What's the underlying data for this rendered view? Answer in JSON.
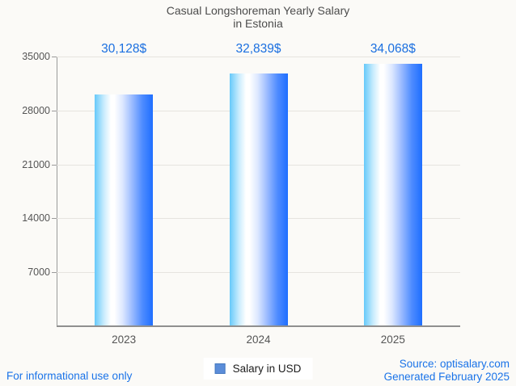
{
  "title": {
    "line1": "Casual Longshoreman Yearly Salary",
    "line2": "in Estonia"
  },
  "legend": {
    "label": "Salary in USD",
    "swatch_color": "#5b8dd9"
  },
  "footer": {
    "left": "For informational use only",
    "source": "Source: optisalary.com",
    "generated": "Generated February 2025"
  },
  "colors": {
    "background": "#fbfaf7",
    "title_gray": "#4c4c4c",
    "axis_gray": "#8f8f8f",
    "grid_gray": "#e6e4df",
    "tick_label_gray": "#555555",
    "value_label_blue": "#1a6fe0",
    "footer_blue": "#1a73e8",
    "bar_gradient_left": "#66c9fa",
    "bar_gradient_middle": "#ffffff",
    "bar_gradient_right": "#1e6eff"
  },
  "chart_data": {
    "type": "bar",
    "title": "Casual Longshoreman Yearly Salary in Estonia",
    "categories": [
      "2023",
      "2024",
      "2025"
    ],
    "values": [
      30128,
      32839,
      34068
    ],
    "value_labels": [
      "30,128$",
      "32,839$",
      "34,068$"
    ],
    "series_name": "Salary in USD",
    "xlabel": "",
    "ylabel": "",
    "ylim": [
      0,
      35000
    ],
    "yticks": [
      7000,
      14000,
      21000,
      28000,
      35000
    ],
    "grid": "horizontal",
    "legend_position": "bottom-center",
    "bar_orientation": "vertical"
  }
}
